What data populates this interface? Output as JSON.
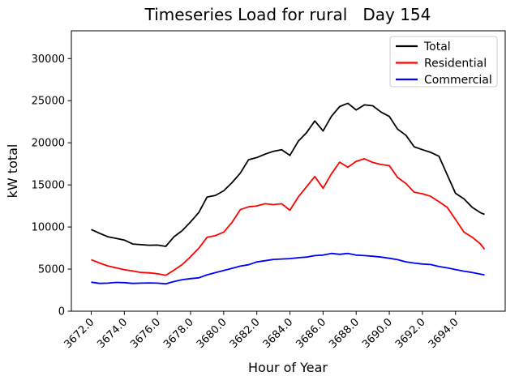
{
  "chart_data": {
    "type": "line",
    "title": "Timeseries Load for rural   Day 154",
    "xlabel": "Hour of Year",
    "ylabel": "kW total",
    "xlim": [
      3670.8,
      3697.0
    ],
    "ylim": [
      0,
      33300
    ],
    "grid": false,
    "legend_position": "upper right",
    "x_tick_values": [
      3672,
      3674,
      3676,
      3678,
      3680,
      3682,
      3684,
      3686,
      3688,
      3690,
      3692,
      3694
    ],
    "x_tick_labels": [
      "3672.0",
      "3674.0",
      "3676.0",
      "3678.0",
      "3680.0",
      "3682.0",
      "3684.0",
      "3686.0",
      "3688.0",
      "3690.0",
      "3692.0",
      "3694.0"
    ],
    "y_tick_values": [
      0,
      5000,
      10000,
      15000,
      20000,
      25000,
      30000
    ],
    "y_tick_labels": [
      "0",
      "5000",
      "10000",
      "15000",
      "20000",
      "25000",
      "30000"
    ],
    "x": [
      3672.0,
      3672.5,
      3673.0,
      3673.5,
      3674.0,
      3674.5,
      3675.0,
      3675.5,
      3676.0,
      3676.5,
      3677.0,
      3677.5,
      3678.0,
      3678.5,
      3679.0,
      3679.5,
      3680.0,
      3680.5,
      3681.0,
      3681.5,
      3682.0,
      3682.5,
      3683.0,
      3683.5,
      3684.0,
      3684.5,
      3685.0,
      3685.5,
      3686.0,
      3686.5,
      3687.0,
      3687.5,
      3688.0,
      3688.5,
      3689.0,
      3689.5,
      3690.0,
      3690.5,
      3691.0,
      3691.5,
      3692.0,
      3692.5,
      3693.0,
      3693.5,
      3694.0,
      3694.5,
      3695.0,
      3695.5,
      3695.75
    ],
    "series": [
      {
        "name": "Total",
        "color": "#000000",
        "values": [
          9700,
          9260,
          8840,
          8650,
          8450,
          7980,
          7900,
          7830,
          7850,
          7700,
          8840,
          9580,
          10610,
          11730,
          13560,
          13750,
          14300,
          15260,
          16390,
          17990,
          18250,
          18650,
          18990,
          19180,
          18510,
          20180,
          21200,
          22600,
          21400,
          23130,
          24300,
          24700,
          23900,
          24500,
          24400,
          23650,
          23130,
          21620,
          20900,
          19530,
          19180,
          18860,
          18400,
          16200,
          14000,
          13350,
          12350,
          11700,
          11500
        ]
      },
      {
        "name": "Residential",
        "color": "#ff0000",
        "values": [
          6120,
          5730,
          5380,
          5150,
          4930,
          4770,
          4600,
          4550,
          4450,
          4250,
          4890,
          5540,
          6470,
          7490,
          8780,
          8980,
          9390,
          10550,
          12060,
          12400,
          12500,
          12760,
          12660,
          12760,
          11990,
          13560,
          14780,
          16000,
          14600,
          16290,
          17700,
          17100,
          17800,
          18100,
          17670,
          17420,
          17290,
          15880,
          15170,
          14140,
          13950,
          13650,
          13000,
          12330,
          10900,
          9400,
          8800,
          8000,
          7350
        ]
      },
      {
        "name": "Commercial",
        "color": "#0000ff",
        "values": [
          3450,
          3300,
          3330,
          3420,
          3390,
          3300,
          3330,
          3360,
          3330,
          3250,
          3520,
          3740,
          3870,
          3970,
          4320,
          4580,
          4830,
          5090,
          5350,
          5510,
          5850,
          6000,
          6150,
          6200,
          6250,
          6350,
          6430,
          6600,
          6660,
          6860,
          6760,
          6860,
          6660,
          6600,
          6530,
          6430,
          6280,
          6120,
          5860,
          5720,
          5600,
          5540,
          5300,
          5150,
          4950,
          4750,
          4600,
          4400,
          4300
        ]
      }
    ]
  }
}
